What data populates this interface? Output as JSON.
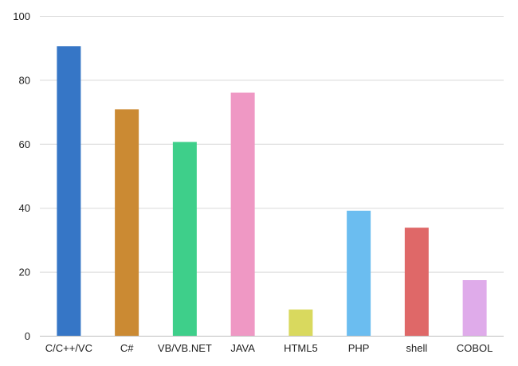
{
  "chart_data": {
    "type": "bar",
    "title": "",
    "xlabel": "",
    "ylabel": "",
    "categories": [
      "C/C++/VC",
      "C#",
      "VB/VB.NET",
      "JAVA",
      "HTML5",
      "PHP",
      "shell",
      "COBOL"
    ],
    "values": [
      90.5,
      70.8,
      60.6,
      76.0,
      8.2,
      39.1,
      33.8,
      17.4
    ],
    "colors": [
      "#3676c6",
      "#cb8a33",
      "#3ecf8a",
      "#ef98c4",
      "#d9d95e",
      "#6bbdf0",
      "#df6868",
      "#dfabea"
    ],
    "ylim": [
      0,
      100
    ],
    "yticks": [
      0,
      20,
      40,
      60,
      80,
      100
    ],
    "grid": true,
    "legend": "none"
  }
}
